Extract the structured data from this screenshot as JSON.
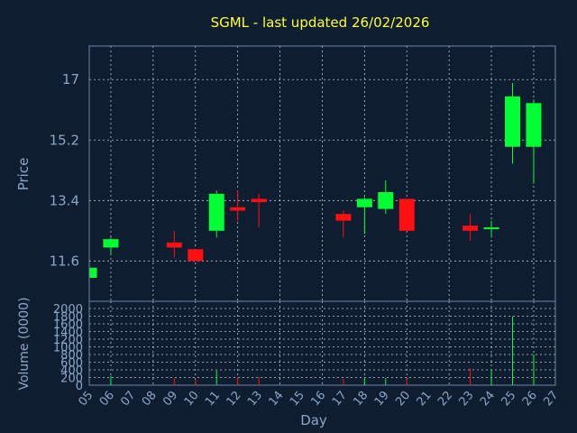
{
  "title": "SGML - last updated 26/02/2026",
  "colors": {
    "background": "#0e1e30",
    "up": "#00ff33",
    "down": "#ff0f0f",
    "title": "#ffff33",
    "axis_text": "#8aa6c8"
  },
  "chart_data": [
    {
      "type": "candlestick",
      "ylabel": "Price",
      "yticks": [
        "17",
        "15.2",
        "13.4",
        "11.6"
      ],
      "ylim": [
        10.4,
        18.0
      ],
      "grid": true,
      "candles": [
        {
          "x": 0,
          "open": 11.1,
          "high": 11.4,
          "low": 11.1,
          "close": 11.4
        },
        {
          "x": 1,
          "open": 12.0,
          "high": 12.3,
          "low": 11.8,
          "close": 12.25
        },
        {
          "x": 4,
          "open": 12.15,
          "high": 12.5,
          "low": 11.7,
          "close": 12.0
        },
        {
          "x": 5,
          "open": 11.95,
          "high": 11.95,
          "low": 11.6,
          "close": 11.6
        },
        {
          "x": 6,
          "open": 12.5,
          "high": 13.7,
          "low": 12.3,
          "close": 13.6
        },
        {
          "x": 7,
          "open": 13.2,
          "high": 13.7,
          "low": 12.8,
          "close": 13.1
        },
        {
          "x": 8,
          "open": 13.45,
          "high": 13.6,
          "low": 12.6,
          "close": 13.35
        },
        {
          "x": 12,
          "open": 13.0,
          "high": 13.1,
          "low": 12.3,
          "close": 12.8
        },
        {
          "x": 13,
          "open": 13.2,
          "high": 13.5,
          "low": 12.4,
          "close": 13.45
        },
        {
          "x": 14,
          "open": 13.15,
          "high": 14.0,
          "low": 13.0,
          "close": 13.65
        },
        {
          "x": 15,
          "open": 13.45,
          "high": 13.45,
          "low": 12.5,
          "close": 12.5
        },
        {
          "x": 18,
          "open": 12.65,
          "high": 13.0,
          "low": 12.2,
          "close": 12.5
        },
        {
          "x": 19,
          "open": 12.55,
          "high": 12.8,
          "low": 12.3,
          "close": 12.6
        },
        {
          "x": 20,
          "open": 15.0,
          "high": 16.9,
          "low": 14.5,
          "close": 16.5
        },
        {
          "x": 21,
          "open": 15.0,
          "high": 16.4,
          "low": 13.9,
          "close": 16.3
        }
      ]
    },
    {
      "type": "bar",
      "ylabel": "Volume (0000)",
      "xlabel": "Day",
      "categories": [
        "05",
        "06",
        "07",
        "08",
        "09",
        "10",
        "11",
        "12",
        "13",
        "14",
        "15",
        "16",
        "17",
        "18",
        "19",
        "20",
        "21",
        "22",
        "23",
        "24",
        "25",
        "26",
        "27"
      ],
      "yticks": [
        "2000",
        "1800",
        "1600",
        "1400",
        "1200",
        "1000",
        "800",
        "600",
        "400",
        "200",
        "0"
      ],
      "ylim": [
        0,
        2000
      ],
      "bars": [
        {
          "x": 1,
          "value": 240,
          "color": "up"
        },
        {
          "x": 4,
          "value": 180,
          "color": "down"
        },
        {
          "x": 5,
          "value": 150,
          "color": "down"
        },
        {
          "x": 6,
          "value": 380,
          "color": "up"
        },
        {
          "x": 7,
          "value": 200,
          "color": "down"
        },
        {
          "x": 8,
          "value": 220,
          "color": "down"
        },
        {
          "x": 12,
          "value": 160,
          "color": "down"
        },
        {
          "x": 13,
          "value": 200,
          "color": "up"
        },
        {
          "x": 14,
          "value": 180,
          "color": "up"
        },
        {
          "x": 15,
          "value": 180,
          "color": "down"
        },
        {
          "x": 18,
          "value": 440,
          "color": "down"
        },
        {
          "x": 19,
          "value": 420,
          "color": "up"
        },
        {
          "x": 20,
          "value": 1790,
          "color": "up"
        },
        {
          "x": 21,
          "value": 800,
          "color": "up"
        }
      ]
    }
  ]
}
